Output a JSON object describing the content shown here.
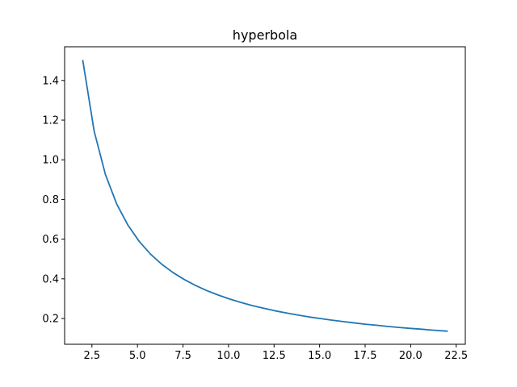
{
  "chart_data": {
    "type": "line",
    "title": "hyperbola",
    "xlabel": "",
    "ylabel": "",
    "xlim": [
      1.0,
      23.0
    ],
    "ylim": [
      0.07,
      1.57
    ],
    "grid": false,
    "legend": "none",
    "x_ticks": [
      2.5,
      5.0,
      7.5,
      10.0,
      12.5,
      15.0,
      17.5,
      20.0,
      22.5
    ],
    "x_tick_labels": [
      "2.5",
      "5.0",
      "7.5",
      "10.0",
      "12.5",
      "15.0",
      "17.5",
      "20.0",
      "22.5"
    ],
    "y_ticks": [
      0.2,
      0.4,
      0.6,
      0.8,
      1.0,
      1.2,
      1.4
    ],
    "y_tick_labels": [
      "0.2",
      "0.4",
      "0.6",
      "0.8",
      "1.0",
      "1.2",
      "1.4"
    ],
    "series": [
      {
        "color": "#1f77b4",
        "x": [
          2.0,
          2.62,
          3.24,
          3.86,
          4.48,
          5.1,
          5.72,
          6.34,
          6.96,
          7.58,
          8.2,
          8.82,
          9.44,
          10.06,
          10.68,
          11.3,
          11.92,
          12.54,
          13.16,
          13.78,
          14.4,
          15.02,
          15.64,
          16.26,
          16.88,
          17.5,
          18.12,
          18.74,
          19.36,
          19.98,
          20.6,
          21.22,
          22.0
        ],
        "y": [
          1.5,
          1.145,
          0.926,
          0.777,
          0.67,
          0.588,
          0.524,
          0.473,
          0.431,
          0.396,
          0.366,
          0.34,
          0.318,
          0.298,
          0.281,
          0.265,
          0.252,
          0.239,
          0.228,
          0.218,
          0.208,
          0.2,
          0.192,
          0.185,
          0.178,
          0.171,
          0.166,
          0.16,
          0.155,
          0.15,
          0.146,
          0.141,
          0.136
        ]
      }
    ]
  }
}
